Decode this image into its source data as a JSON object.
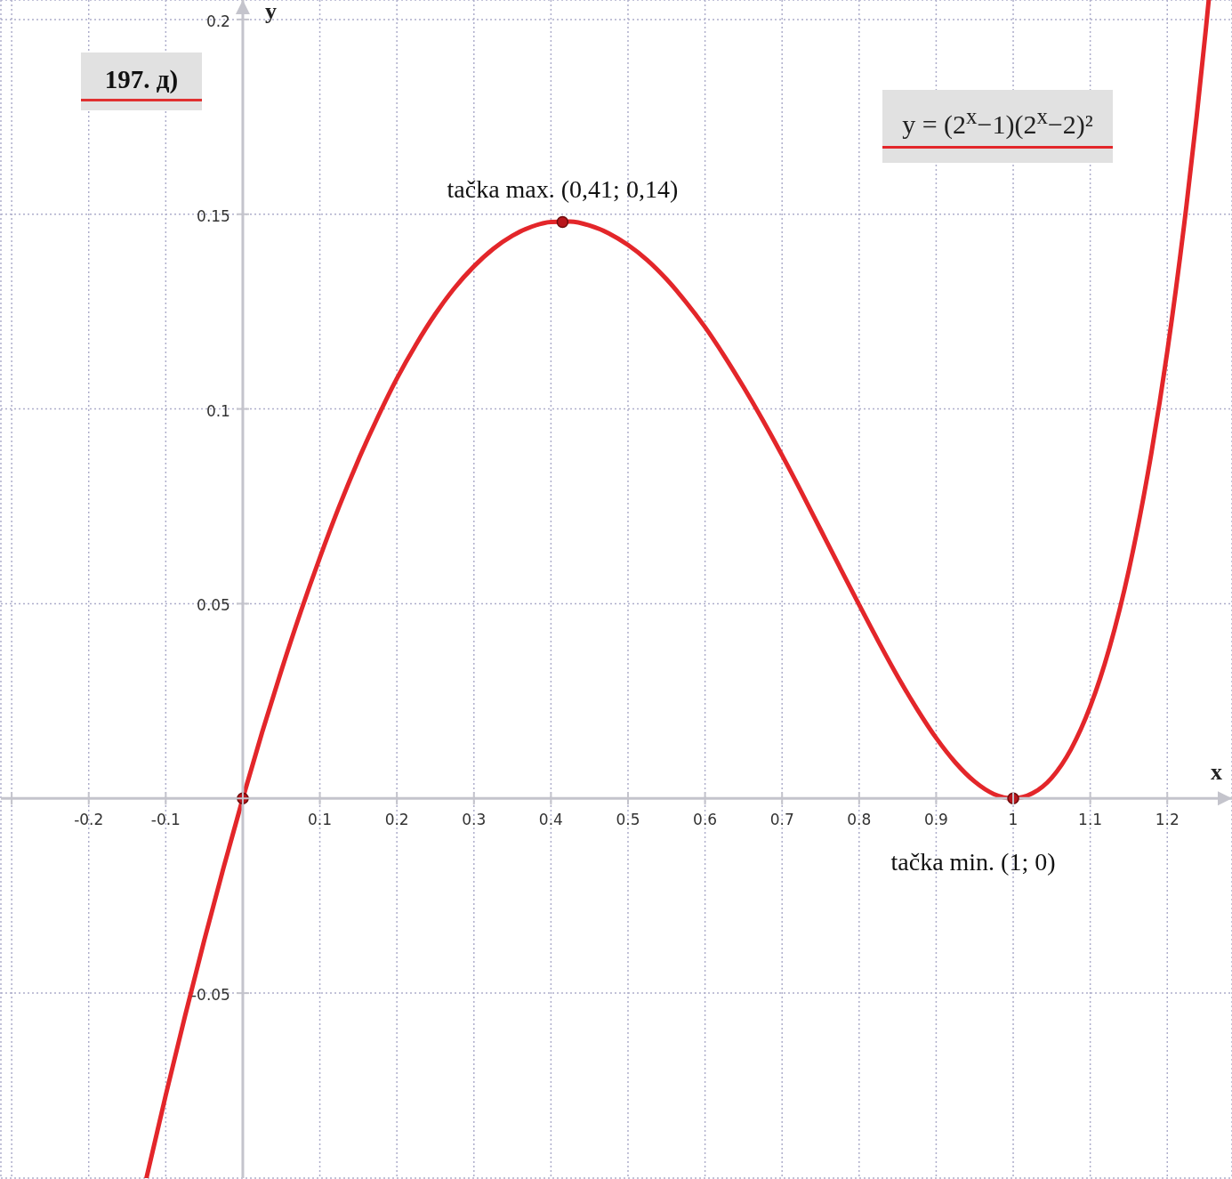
{
  "chart_data": {
    "type": "line",
    "title": "197. д)",
    "xlabel": "x",
    "ylabel": "y",
    "annotations": [
      {
        "text": "tačka max. (0,41; 0,14)",
        "x": 0.415,
        "y": 0.148
      },
      {
        "text": "tačka min. (1; 0)",
        "x": 1,
        "y": 0
      }
    ],
    "series": [
      {
        "name": "y = (2$^{x}$−1)(2$^{x}$−2)²",
        "color": "#e3262a",
        "marker": "none",
        "x": [
          -0.125,
          -0.1,
          -0.075,
          -0.05,
          -0.025,
          0,
          0.025,
          0.05,
          0.075,
          0.1,
          0.125,
          0.15,
          0.175,
          0.2,
          0.225,
          0.25,
          0.275,
          0.3,
          0.325,
          0.35,
          0.375,
          0.4,
          0.425,
          0.45,
          0.475,
          0.5,
          0.525,
          0.55,
          0.575,
          0.6,
          0.625,
          0.65,
          0.675,
          0.7,
          0.725,
          0.75,
          0.775,
          0.8,
          0.825,
          0.85,
          0.875,
          0.9,
          0.925,
          0.95,
          0.975,
          1,
          1.025,
          1.05,
          1.075,
          1.1,
          1.125,
          1.15,
          1.175,
          1.2,
          1.225,
          1.25,
          1.2538
        ],
        "values": [
          -0.0974,
          -0.0762,
          -0.0559,
          -0.0364,
          -0.0178,
          0,
          0.0169,
          0.0328,
          0.0478,
          0.0618,
          0.0749,
          0.0869,
          0.0978,
          0.1078,
          0.1166,
          0.1244,
          0.1311,
          0.1366,
          0.1411,
          0.1445,
          0.1468,
          0.148,
          0.1481,
          0.1471,
          0.1451,
          0.1421,
          0.1382,
          0.1333,
          0.1275,
          0.121,
          0.1136,
          0.1056,
          0.0971,
          0.0881,
          0.0787,
          0.069,
          0.0593,
          0.0497,
          0.0403,
          0.0313,
          0.023,
          0.0155,
          0.0092,
          0.0043,
          0.0011,
          0,
          0.0013,
          0.0053,
          0.0126,
          0.0236,
          0.0387,
          0.0585,
          0.0837,
          0.1147,
          0.1524,
          0.1974,
          0.205
        ]
      },
      {
        "type": "scatter",
        "color": "#b8161c",
        "marker": "circle",
        "x": [
          0,
          0.415,
          1
        ],
        "values": [
          0,
          0.148,
          0
        ]
      }
    ],
    "xlim": [
      -0.314,
      1.284
    ],
    "ylim": [
      -0.0975,
      0.205
    ],
    "xticks": [
      {
        "value": -0.3,
        "label": null
      },
      -0.2,
      -0.1,
      {
        "value": 0,
        "label": null
      },
      0.1,
      0.2,
      0.3,
      0.4,
      0.5,
      0.6,
      0.7,
      0.8,
      0.9,
      1,
      1.1,
      1.2
    ],
    "yticks": [
      -0.05,
      {
        "value": 0,
        "label": null
      },
      0.05,
      0.1,
      0.15,
      0.2
    ],
    "grid": true,
    "legend": "top right"
  }
}
